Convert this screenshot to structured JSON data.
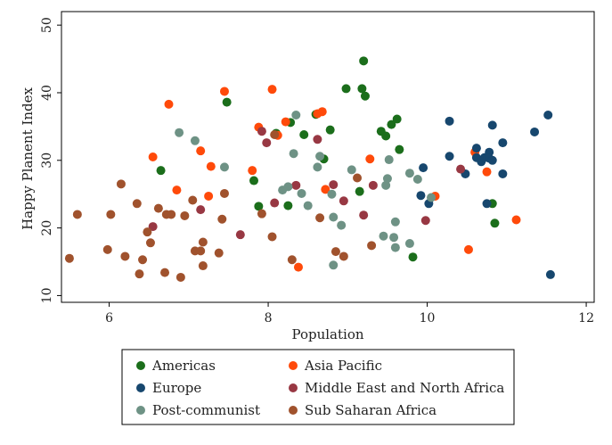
{
  "chart_data": {
    "type": "scatter",
    "title": "",
    "xlabel": "Population",
    "ylabel": "Happy Planent Index",
    "xlim": [
      5.4,
      12.1
    ],
    "ylim": [
      9,
      52
    ],
    "xticks": [
      6,
      8,
      10,
      12
    ],
    "yticks": [
      10,
      20,
      30,
      40,
      50
    ],
    "grid": false,
    "legend_position": "bottom",
    "series": [
      {
        "name": "Americas",
        "color": "#1b6e1b",
        "points": [
          [
            6.65,
            28.5
          ],
          [
            7.48,
            38.6
          ],
          [
            7.82,
            27.0
          ],
          [
            7.88,
            23.2
          ],
          [
            8.1,
            34.0
          ],
          [
            8.25,
            23.3
          ],
          [
            8.28,
            35.6
          ],
          [
            8.45,
            33.8
          ],
          [
            8.6,
            36.8
          ],
          [
            8.7,
            30.2
          ],
          [
            8.78,
            34.5
          ],
          [
            8.98,
            40.6
          ],
          [
            9.18,
            40.6
          ],
          [
            9.2,
            44.7
          ],
          [
            9.22,
            39.5
          ],
          [
            9.15,
            25.4
          ],
          [
            9.42,
            34.3
          ],
          [
            9.48,
            33.6
          ],
          [
            9.55,
            35.3
          ],
          [
            9.62,
            36.1
          ],
          [
            9.65,
            31.6
          ],
          [
            9.82,
            15.7
          ],
          [
            10.82,
            23.6
          ],
          [
            10.85,
            20.7
          ]
        ]
      },
      {
        "name": "Asia Pacific",
        "color": "#ff4a0a",
        "points": [
          [
            6.55,
            30.5
          ],
          [
            6.75,
            38.3
          ],
          [
            6.85,
            25.6
          ],
          [
            7.15,
            31.4
          ],
          [
            7.28,
            29.1
          ],
          [
            7.25,
            24.7
          ],
          [
            7.45,
            40.2
          ],
          [
            7.8,
            28.5
          ],
          [
            7.88,
            34.9
          ],
          [
            8.05,
            40.5
          ],
          [
            8.12,
            33.7
          ],
          [
            8.22,
            35.7
          ],
          [
            8.38,
            14.2
          ],
          [
            8.62,
            36.9
          ],
          [
            8.68,
            37.2
          ],
          [
            8.72,
            25.7
          ],
          [
            9.28,
            30.2
          ],
          [
            10.1,
            24.7
          ],
          [
            10.52,
            16.8
          ],
          [
            10.6,
            31.2
          ],
          [
            10.75,
            28.3
          ],
          [
            11.12,
            21.2
          ]
        ]
      },
      {
        "name": "Europe",
        "color": "#17476e",
        "points": [
          [
            9.92,
            24.8
          ],
          [
            9.95,
            28.9
          ],
          [
            10.02,
            23.6
          ],
          [
            10.28,
            35.8
          ],
          [
            10.28,
            30.6
          ],
          [
            10.48,
            28.0
          ],
          [
            10.62,
            30.4
          ],
          [
            10.62,
            31.8
          ],
          [
            10.68,
            29.8
          ],
          [
            10.72,
            30.4
          ],
          [
            10.75,
            23.6
          ],
          [
            10.78,
            31.2
          ],
          [
            10.78,
            30.3
          ],
          [
            10.82,
            35.2
          ],
          [
            10.82,
            30.0
          ],
          [
            10.95,
            32.6
          ],
          [
            10.95,
            28.0
          ],
          [
            11.35,
            34.2
          ],
          [
            11.52,
            36.7
          ],
          [
            11.55,
            13.1
          ]
        ]
      },
      {
        "name": "Middle East and North Africa",
        "color": "#983843",
        "points": [
          [
            6.55,
            20.2
          ],
          [
            7.15,
            22.7
          ],
          [
            7.65,
            19.0
          ],
          [
            7.92,
            34.3
          ],
          [
            7.98,
            32.6
          ],
          [
            8.08,
            23.7
          ],
          [
            8.35,
            26.3
          ],
          [
            8.62,
            33.1
          ],
          [
            8.82,
            26.4
          ],
          [
            8.95,
            24.0
          ],
          [
            9.2,
            21.9
          ],
          [
            9.32,
            26.3
          ],
          [
            9.98,
            21.1
          ],
          [
            10.42,
            28.7
          ]
        ]
      },
      {
        "name": "Post-communist",
        "color": "#6e9285",
        "points": [
          [
            6.88,
            34.1
          ],
          [
            7.08,
            32.9
          ],
          [
            7.45,
            29.0
          ],
          [
            8.18,
            25.6
          ],
          [
            8.25,
            26.1
          ],
          [
            8.35,
            36.7
          ],
          [
            8.32,
            31.0
          ],
          [
            8.42,
            25.1
          ],
          [
            8.5,
            23.3
          ],
          [
            8.62,
            29.0
          ],
          [
            8.65,
            30.6
          ],
          [
            8.8,
            25.0
          ],
          [
            8.82,
            21.6
          ],
          [
            8.82,
            14.5
          ],
          [
            8.92,
            20.4
          ],
          [
            9.05,
            28.6
          ],
          [
            9.45,
            18.8
          ],
          [
            9.48,
            26.3
          ],
          [
            9.5,
            27.3
          ],
          [
            9.52,
            30.1
          ],
          [
            9.58,
            18.6
          ],
          [
            9.6,
            17.1
          ],
          [
            9.6,
            20.9
          ],
          [
            9.78,
            28.1
          ],
          [
            9.78,
            17.7
          ],
          [
            9.88,
            27.2
          ],
          [
            10.05,
            24.5
          ]
        ]
      },
      {
        "name": "Sub Saharan Africa",
        "color": "#a0522d",
        "points": [
          [
            5.5,
            15.5
          ],
          [
            5.6,
            22.0
          ],
          [
            5.98,
            16.8
          ],
          [
            6.02,
            22.0
          ],
          [
            6.15,
            26.5
          ],
          [
            6.2,
            15.8
          ],
          [
            6.35,
            23.6
          ],
          [
            6.38,
            13.2
          ],
          [
            6.42,
            15.3
          ],
          [
            6.48,
            19.4
          ],
          [
            6.52,
            17.8
          ],
          [
            6.62,
            22.9
          ],
          [
            6.7,
            13.4
          ],
          [
            6.72,
            22.0
          ],
          [
            6.78,
            22.0
          ],
          [
            6.9,
            12.7
          ],
          [
            6.95,
            21.8
          ],
          [
            7.05,
            24.1
          ],
          [
            7.08,
            16.6
          ],
          [
            7.15,
            16.6
          ],
          [
            7.18,
            14.4
          ],
          [
            7.18,
            17.9
          ],
          [
            7.38,
            16.3
          ],
          [
            7.42,
            21.3
          ],
          [
            7.45,
            25.1
          ],
          [
            7.92,
            22.1
          ],
          [
            8.05,
            18.7
          ],
          [
            8.08,
            33.8
          ],
          [
            8.3,
            15.3
          ],
          [
            8.65,
            21.5
          ],
          [
            8.85,
            16.5
          ],
          [
            8.95,
            15.8
          ],
          [
            9.12,
            27.4
          ],
          [
            9.3,
            17.4
          ]
        ]
      }
    ]
  }
}
